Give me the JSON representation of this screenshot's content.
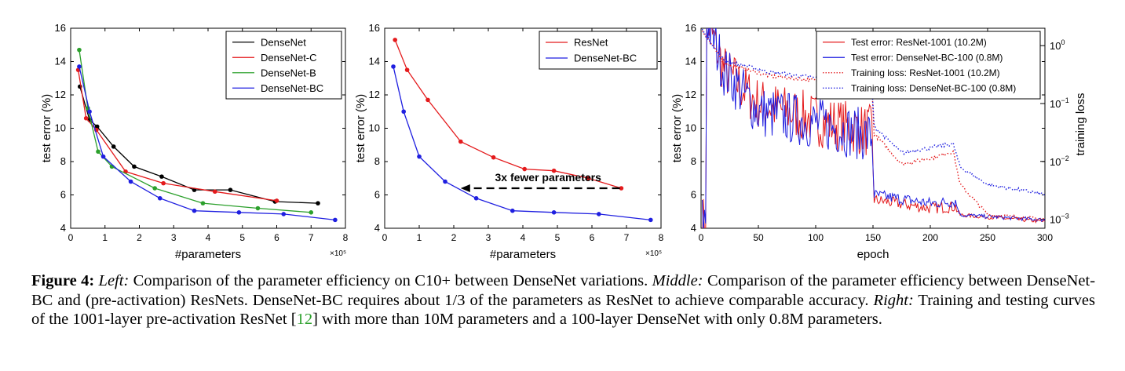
{
  "colors": {
    "black": "#000000",
    "red": "#e41a1c",
    "green": "#2ca02c",
    "blue": "#1f1fe0",
    "citation": "#2ca02c"
  },
  "chart_data": [
    {
      "type": "line",
      "xlabel": "#parameters",
      "ylabel": "test error (%)",
      "x_multiplier_label": "×10⁵",
      "xlim": [
        0,
        8
      ],
      "ylim": [
        4,
        16
      ],
      "xticks": [
        "0",
        "1",
        "2",
        "3",
        "4",
        "5",
        "6",
        "7",
        "8"
      ],
      "yticks": [
        "4",
        "6",
        "8",
        "10",
        "12",
        "14",
        "16"
      ],
      "legend_position": "top-right",
      "series": [
        {
          "name": "DenseNet",
          "color": "#000000",
          "x": [
            0.27,
            0.55,
            0.77,
            1.25,
            1.85,
            2.65,
            3.6,
            4.65,
            5.95,
            7.2
          ],
          "y": [
            12.5,
            10.5,
            10.1,
            8.9,
            7.7,
            7.1,
            6.3,
            6.3,
            5.6,
            5.5
          ]
        },
        {
          "name": "DenseNet-C",
          "color": "#e41a1c",
          "x": [
            0.22,
            0.45,
            0.75,
            1.6,
            2.7,
            4.2,
            6.0
          ],
          "y": [
            13.5,
            10.6,
            9.9,
            7.4,
            6.7,
            6.2,
            5.65
          ]
        },
        {
          "name": "DenseNet-B",
          "color": "#2ca02c",
          "x": [
            0.25,
            0.5,
            0.8,
            1.2,
            2.45,
            3.85,
            5.45,
            7.0
          ],
          "y": [
            14.7,
            11.2,
            8.6,
            7.7,
            6.4,
            5.5,
            5.2,
            4.95
          ]
        },
        {
          "name": "DenseNet-BC",
          "color": "#1f1fe0",
          "x": [
            0.25,
            0.55,
            0.95,
            1.75,
            2.6,
            3.6,
            4.9,
            6.2,
            7.7
          ],
          "y": [
            13.7,
            11.0,
            8.3,
            6.8,
            5.8,
            5.05,
            4.95,
            4.85,
            4.5
          ]
        }
      ]
    },
    {
      "type": "line",
      "xlabel": "#parameters",
      "ylabel": "test error (%)",
      "x_multiplier_label": "×10⁵",
      "xlim": [
        0,
        8
      ],
      "ylim": [
        4,
        16
      ],
      "xticks": [
        "0",
        "1",
        "2",
        "3",
        "4",
        "5",
        "6",
        "7",
        "8"
      ],
      "yticks": [
        "4",
        "6",
        "8",
        "10",
        "12",
        "14",
        "16"
      ],
      "legend_position": "top-right",
      "annotation": {
        "text": "3x fewer parameters",
        "arrow_from": [
          6.9,
          6.4
        ],
        "arrow_to": [
          2.2,
          6.4
        ]
      },
      "series": [
        {
          "name": "ResNet",
          "color": "#e41a1c",
          "x": [
            0.3,
            0.65,
            1.25,
            2.2,
            3.15,
            4.05,
            4.9,
            5.9,
            6.85
          ],
          "y": [
            15.3,
            13.5,
            11.7,
            9.2,
            8.25,
            7.55,
            7.45,
            7.0,
            6.4
          ]
        },
        {
          "name": "DenseNet-BC",
          "color": "#1f1fe0",
          "x": [
            0.25,
            0.55,
            1.0,
            1.75,
            2.65,
            3.7,
            4.9,
            6.2,
            7.7
          ],
          "y": [
            13.7,
            11.0,
            8.3,
            6.8,
            5.8,
            5.05,
            4.95,
            4.85,
            4.5
          ]
        }
      ]
    },
    {
      "type": "line",
      "xlabel": "epoch",
      "ylabel": "test error (%)",
      "y2label": "training loss",
      "xlim": [
        0,
        300
      ],
      "ylim": [
        4,
        16
      ],
      "y2_log_range": [
        0.0007,
        2
      ],
      "xticks": [
        "0",
        "50",
        "100",
        "150",
        "200",
        "250",
        "300"
      ],
      "yticks": [
        "4",
        "6",
        "8",
        "10",
        "12",
        "14",
        "16"
      ],
      "y2ticks": [
        {
          "base": "10",
          "exp": "0",
          "value": 1
        },
        {
          "base": "10",
          "exp": "−1",
          "value": 0.1
        },
        {
          "base": "10",
          "exp": "−2",
          "value": 0.01
        },
        {
          "base": "10",
          "exp": "−3",
          "value": 0.001
        }
      ],
      "legend_position": "top-right",
      "series": [
        {
          "name": "Test error: ResNet-1001 (10.2M)",
          "color": "#e41a1c",
          "style": "solid",
          "axis": "left",
          "keypoints": [
            [
              5,
              16.5
            ],
            [
              20,
              13.5
            ],
            [
              50,
              11.5
            ],
            [
              100,
              10.5
            ],
            [
              149,
              9.8
            ],
            [
              151,
              5.7
            ],
            [
              200,
              5.2
            ],
            [
              222,
              5.3
            ],
            [
              226,
              4.8
            ],
            [
              300,
              4.4
            ]
          ]
        },
        {
          "name": "Test error: DenseNet-BC-100 (0.8M)",
          "color": "#1f1fe0",
          "style": "solid",
          "axis": "left",
          "keypoints": [
            [
              5,
              16.5
            ],
            [
              20,
              13.5
            ],
            [
              50,
              11.0
            ],
            [
              100,
              10.3
            ],
            [
              149,
              9.5
            ],
            [
              151,
              6.0
            ],
            [
              200,
              5.5
            ],
            [
              222,
              5.6
            ],
            [
              226,
              4.8
            ],
            [
              300,
              4.5
            ]
          ]
        },
        {
          "name": "Training loss: ResNet-1001 (10.2M)",
          "color": "#e41a1c",
          "style": "dotted",
          "axis": "right",
          "keypoints": [
            [
              0,
              2.0
            ],
            [
              20,
              0.5
            ],
            [
              60,
              0.3
            ],
            [
              100,
              0.25
            ],
            [
              149,
              0.2
            ],
            [
              151,
              0.03
            ],
            [
              175,
              0.009
            ],
            [
              205,
              0.012
            ],
            [
              220,
              0.015
            ],
            [
              226,
              0.004
            ],
            [
              250,
              0.0012
            ],
            [
              300,
              0.001
            ]
          ]
        },
        {
          "name": "Training loss: DenseNet-BC-100 (0.8M)",
          "color": "#1f1fe0",
          "style": "dotted",
          "axis": "right",
          "keypoints": [
            [
              0,
              2.0
            ],
            [
              20,
              0.55
            ],
            [
              60,
              0.35
            ],
            [
              100,
              0.28
            ],
            [
              149,
              0.22
            ],
            [
              151,
              0.04
            ],
            [
              175,
              0.014
            ],
            [
              205,
              0.018
            ],
            [
              220,
              0.02
            ],
            [
              226,
              0.008
            ],
            [
              250,
              0.004
            ],
            [
              300,
              0.0027
            ]
          ]
        }
      ]
    }
  ],
  "caption": {
    "label": "Figure 4:",
    "left_title": "Left:",
    "left_text": "Comparison of the parameter efficiency on C10+ between DenseNet variations.",
    "middle_title": "Middle:",
    "middle_text": "Comparison of the parameter efficiency between DenseNet-BC and (pre-activation) ResNets. DenseNet-BC requires about 1/3 of the parameters as ResNet to achieve comparable accuracy.",
    "right_title": "Right:",
    "right_text_a": "Training and testing curves of the 1001-layer pre-activation ResNet [",
    "citation": "12",
    "right_text_b": "] with more than 10M parameters and a 100-layer DenseNet with only 0.8M parameters."
  }
}
